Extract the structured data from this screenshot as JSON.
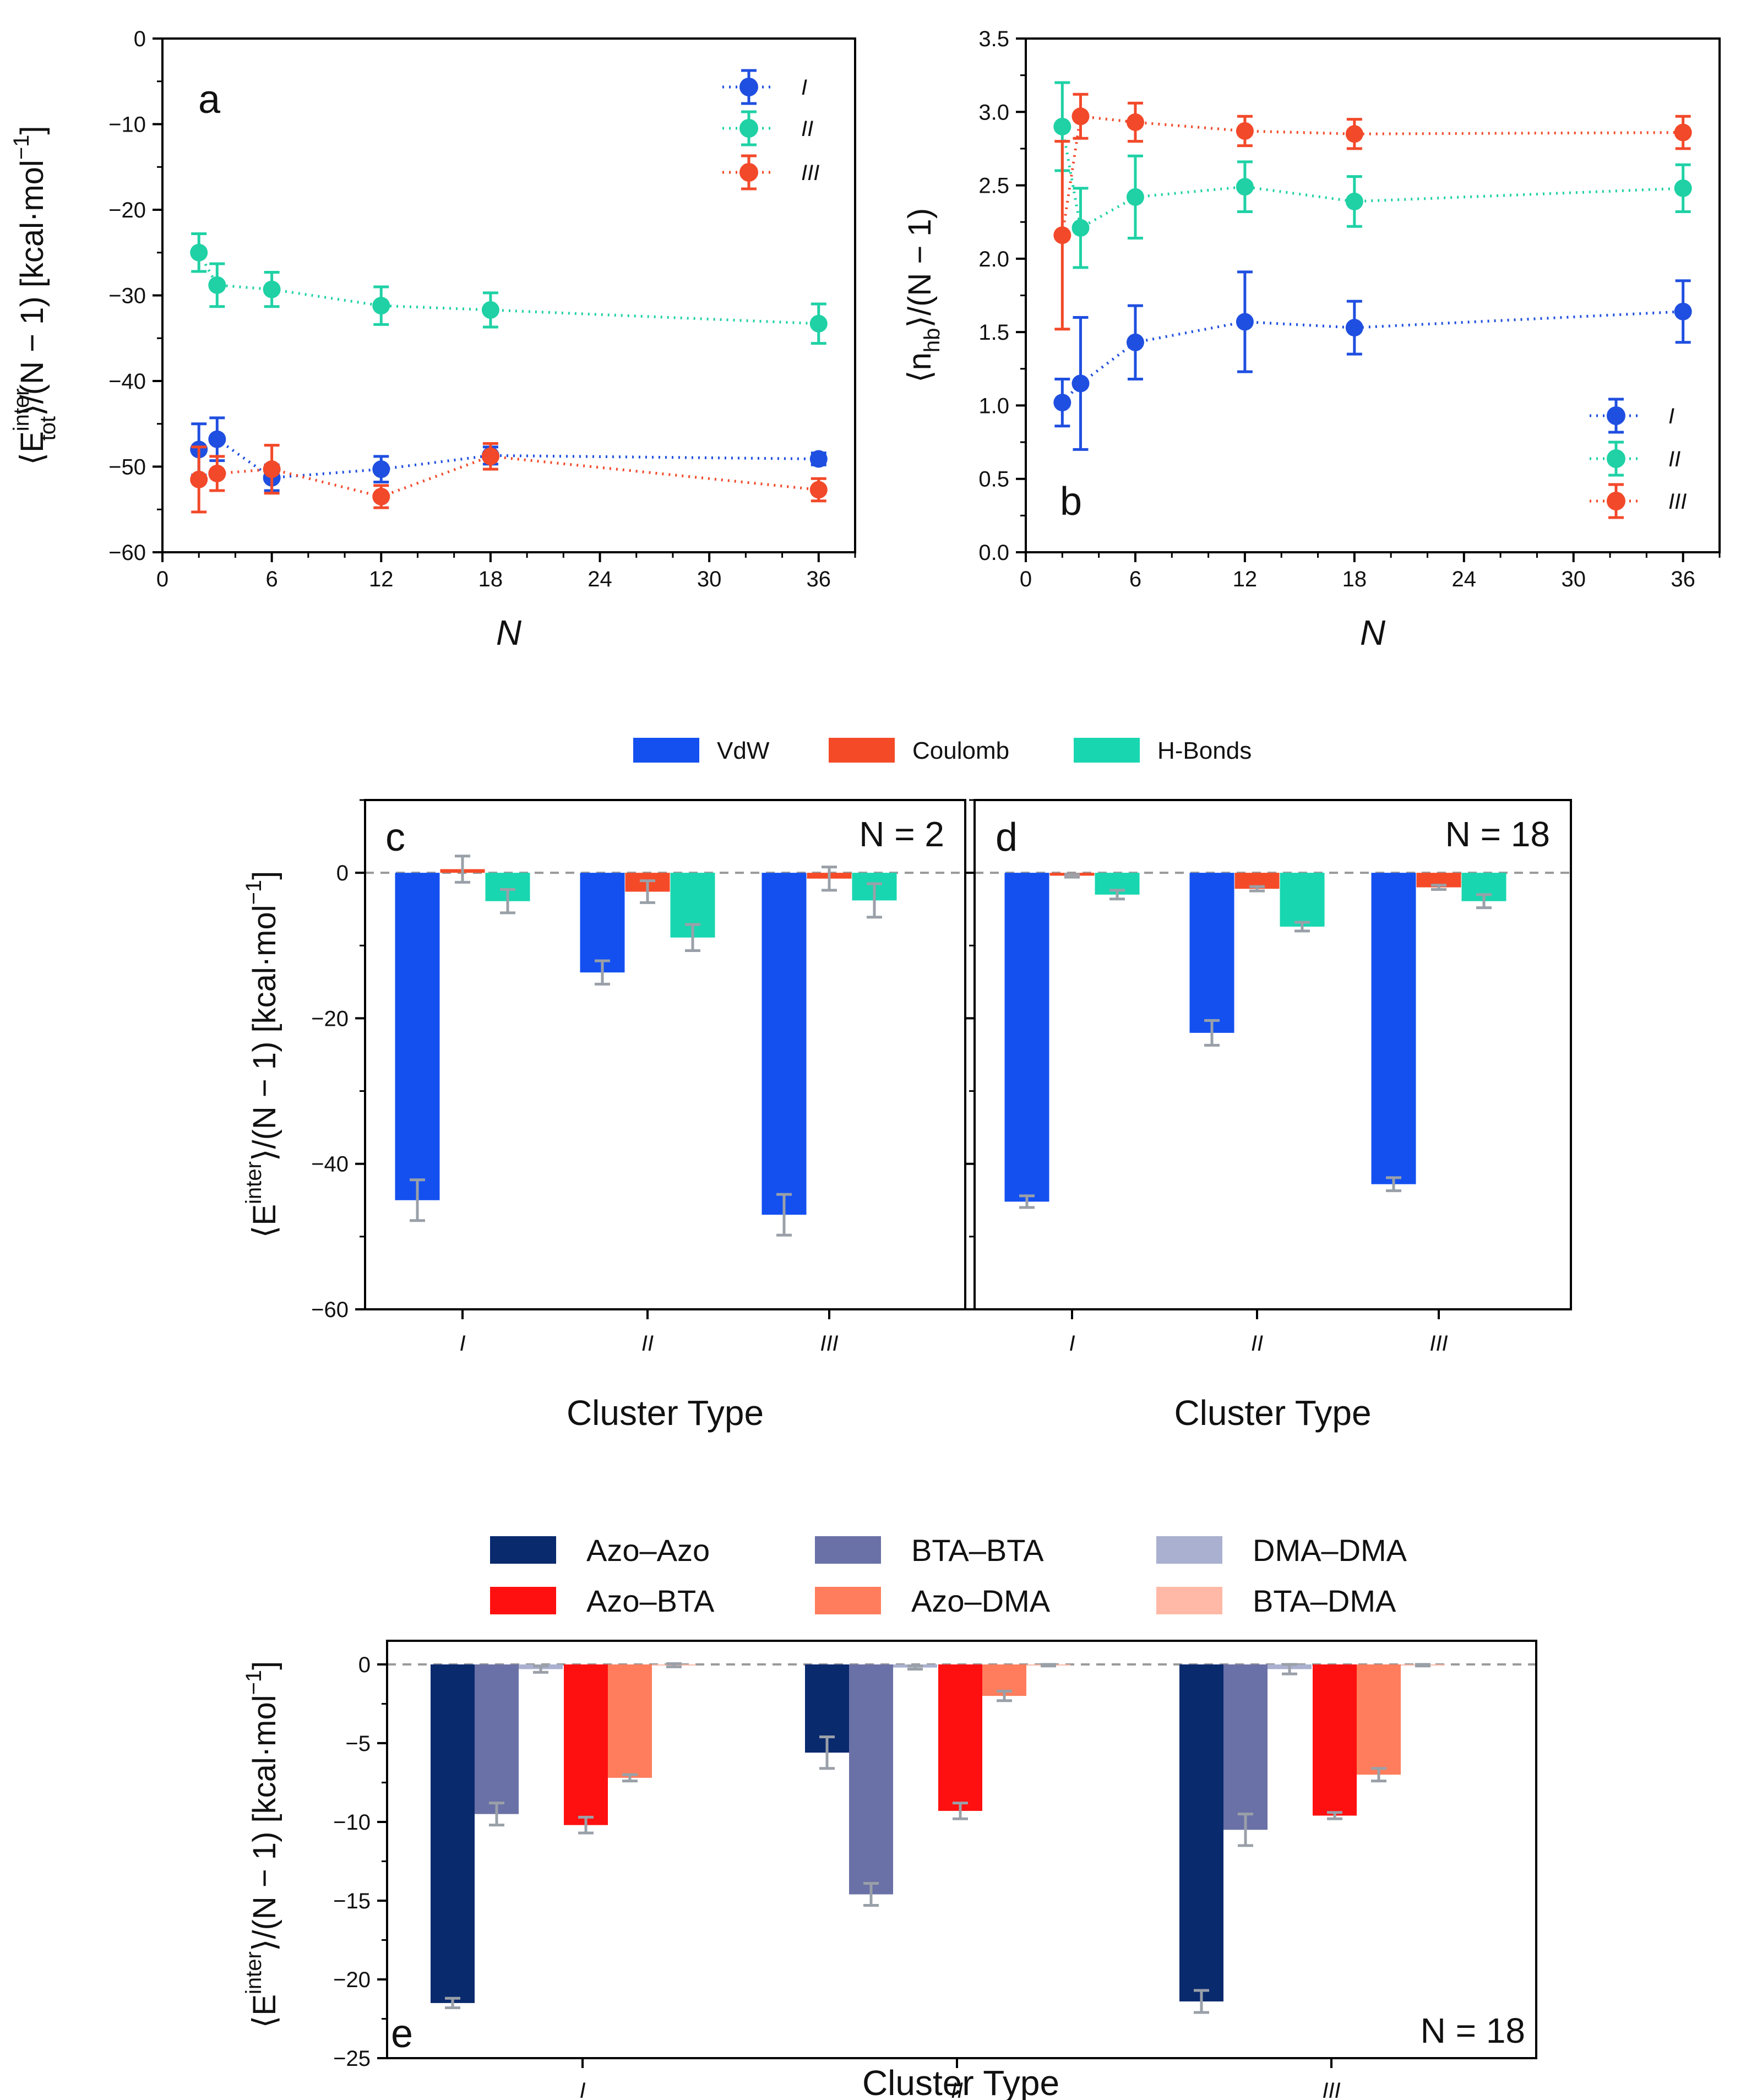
{
  "chart_data": [
    {
      "panel": "a",
      "type": "line",
      "ylabel_main": "⟨E",
      "ylabel_sub": "tot",
      "ylabel_sup": "inter",
      "ylabel_rest": "⟩/(N − 1) [kcal·mol",
      "ylabel_unit_sup": "−1",
      "ylabel_close": "]",
      "xlabel": "N",
      "xlim": [
        0,
        38
      ],
      "ylim": [
        -60,
        0
      ],
      "xticks": [
        0,
        6,
        12,
        18,
        24,
        30,
        36
      ],
      "yticks": [
        0,
        -10,
        -20,
        -30,
        -40,
        -50,
        -60
      ],
      "ytick_labels": [
        "0",
        "−10",
        "−20",
        "−30",
        "−40",
        "−50",
        "−60"
      ],
      "legend_loc": "top-right",
      "series": [
        {
          "name": "I",
          "color": "#1f4fe0",
          "x": [
            2,
            3,
            6,
            12,
            18,
            36
          ],
          "y": [
            -48.0,
            -46.8,
            -51.3,
            -50.3,
            -48.7,
            -49.1
          ],
          "err": [
            3.0,
            2.5,
            1.5,
            1.5,
            1.0,
            0.7
          ]
        },
        {
          "name": "II",
          "color": "#1fd1a5",
          "x": [
            2,
            3,
            6,
            12,
            18,
            36
          ],
          "y": [
            -25.0,
            -28.8,
            -29.3,
            -31.2,
            -31.7,
            -33.3
          ],
          "err": [
            2.2,
            2.5,
            2.0,
            2.2,
            2.0,
            2.3
          ]
        },
        {
          "name": "III",
          "color": "#f2492a",
          "x": [
            2,
            3,
            6,
            12,
            18,
            36
          ],
          "y": [
            -51.5,
            -50.8,
            -50.3,
            -53.5,
            -48.8,
            -52.7
          ],
          "err": [
            3.8,
            2.0,
            2.8,
            1.3,
            1.5,
            1.3
          ]
        }
      ]
    },
    {
      "panel": "b",
      "type": "line",
      "ylabel_main": "⟨n",
      "ylabel_sub": "hb",
      "ylabel_rest": "⟩/(N − 1)",
      "xlabel": "N",
      "xlim": [
        0,
        38
      ],
      "ylim": [
        0,
        3.5
      ],
      "xticks": [
        0,
        6,
        12,
        18,
        24,
        30,
        36
      ],
      "yticks": [
        0.0,
        0.5,
        1.0,
        1.5,
        2.0,
        2.5,
        3.0,
        3.5
      ],
      "ytick_labels": [
        "0.0",
        "0.5",
        "1.0",
        "1.5",
        "2.0",
        "2.5",
        "3.0",
        "3.5"
      ],
      "legend_loc": "bottom-right",
      "series": [
        {
          "name": "I",
          "color": "#1f4fe0",
          "x": [
            2,
            3,
            6,
            12,
            18,
            36
          ],
          "y": [
            1.02,
            1.15,
            1.43,
            1.57,
            1.53,
            1.64
          ],
          "err": [
            0.16,
            0.45,
            0.25,
            0.34,
            0.18,
            0.21
          ]
        },
        {
          "name": "II",
          "color": "#1fd1a5",
          "x": [
            2,
            3,
            6,
            12,
            18,
            36
          ],
          "y": [
            2.9,
            2.21,
            2.42,
            2.49,
            2.39,
            2.48
          ],
          "err": [
            0.3,
            0.27,
            0.28,
            0.17,
            0.17,
            0.16
          ]
        },
        {
          "name": "III",
          "color": "#f2492a",
          "x": [
            2,
            3,
            6,
            12,
            18,
            36
          ],
          "y": [
            2.16,
            2.97,
            2.93,
            2.87,
            2.85,
            2.86
          ],
          "err": [
            0.64,
            0.15,
            0.13,
            0.1,
            0.1,
            0.11
          ]
        }
      ]
    },
    {
      "panel": "c",
      "type": "bar",
      "annotation": "N = 2",
      "categories": [
        "I",
        "II",
        "III"
      ],
      "xlabel": "Cluster Type",
      "ylim": [
        -60,
        10
      ],
      "yticks": [
        0,
        -20,
        -40,
        -60
      ],
      "ytick_labels": [
        "0",
        "−20",
        "−40",
        "−60"
      ],
      "series": [
        {
          "name": "VdW",
          "color": "#1450f0",
          "values": [
            -45.0,
            -13.7,
            -47.0
          ],
          "err": [
            2.8,
            1.6,
            2.8
          ]
        },
        {
          "name": "Coulomb",
          "color": "#f54a28",
          "values": [
            0.5,
            -2.6,
            -0.8
          ],
          "err": [
            1.8,
            1.5,
            1.6
          ]
        },
        {
          "name": "H-Bonds",
          "color": "#18d6b0",
          "values": [
            -3.9,
            -8.9,
            -3.8
          ],
          "err": [
            1.6,
            1.8,
            2.3
          ]
        }
      ]
    },
    {
      "panel": "d",
      "type": "bar",
      "annotation": "N = 18",
      "categories": [
        "I",
        "II",
        "III"
      ],
      "xlabel": "Cluster Type",
      "ylim": [
        -60,
        10
      ],
      "series": [
        {
          "name": "VdW",
          "color": "#1450f0",
          "values": [
            -45.2,
            -22.0,
            -42.8
          ],
          "err": [
            0.8,
            1.7,
            0.9
          ]
        },
        {
          "name": "Coulomb",
          "color": "#f54a28",
          "values": [
            -0.4,
            -2.2,
            -2.0
          ],
          "err": [
            0.2,
            0.3,
            0.3
          ]
        },
        {
          "name": "H-Bonds",
          "color": "#18d6b0",
          "values": [
            -3.0,
            -7.4,
            -3.9
          ],
          "err": [
            0.6,
            0.6,
            0.9
          ]
        }
      ]
    },
    {
      "panel": "e",
      "type": "bar",
      "annotation": "N = 18",
      "categories": [
        "I",
        "II",
        "III"
      ],
      "xlabel": "Cluster Type",
      "ylim": [
        -25,
        1.5
      ],
      "yticks": [
        0,
        -5,
        -10,
        -15,
        -20,
        -25
      ],
      "ytick_labels": [
        "0",
        "−5",
        "−10",
        "−15",
        "−20",
        "−25"
      ],
      "series": [
        {
          "name": "Azo–Azo",
          "color": "#0a2a6e",
          "values": [
            -21.5,
            -5.6,
            -21.4
          ],
          "err": [
            0.3,
            1.0,
            0.7
          ]
        },
        {
          "name": "BTA–BTA",
          "color": "#6a71a6",
          "values": [
            -9.5,
            -14.6,
            -10.5
          ],
          "err": [
            0.7,
            0.7,
            1.0
          ]
        },
        {
          "name": "DMA–DMA",
          "color": "#aab0cf",
          "values": [
            -0.3,
            -0.2,
            -0.3
          ],
          "err": [
            0.2,
            0.1,
            0.3
          ]
        },
        {
          "name": "Azo–BTA",
          "color": "#ff1010",
          "values": [
            -10.2,
            -9.3,
            -9.6
          ],
          "err": [
            0.5,
            0.5,
            0.2
          ]
        },
        {
          "name": "Azo–DMA",
          "color": "#ff7d5c",
          "values": [
            -7.2,
            -2.0,
            -7.0
          ],
          "err": [
            0.2,
            0.3,
            0.4
          ]
        },
        {
          "name": "BTA–DMA",
          "color": "#ffb9a6",
          "values": [
            -0.05,
            -0.05,
            -0.05
          ],
          "err": [
            0.1,
            0.05,
            0.05
          ]
        }
      ]
    }
  ],
  "shared": {
    "ylabel_cd_main": "⟨E",
    "ylabel_cd_sup": "inter",
    "ylabel_cd_rest": "⟩/(N − 1)   [kcal·mol",
    "ylabel_cd_unit_sup": "−1",
    "ylabel_cd_close": "]",
    "errbar_color": "#9aa0a8",
    "zero_line_color": "#999999"
  }
}
